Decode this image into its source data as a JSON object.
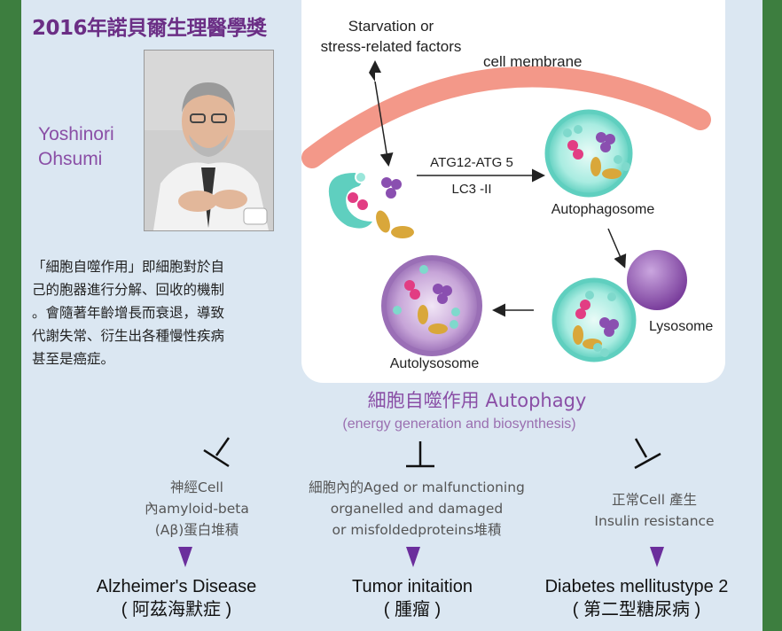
{
  "title": "2016年諾貝爾生理醫學獎",
  "laureate": {
    "first_name": "Yoshinori",
    "last_name": "Ohsumi"
  },
  "description": [
    "「細胞自噬作用」即細胞對於自",
    "己的胞器進行分解、回收的機制",
    "。會隨著年齡增長而衰退，導致",
    "代謝失常、衍生出各種慢性疾病",
    "甚至是癌症。"
  ],
  "pathway": {
    "trigger_line1": "Starvation or",
    "trigger_line2": "stress-related factors",
    "membrane": "cell membrane",
    "reaction_top": "ATG12-ATG 5",
    "reaction_bottom": "LC3 -II",
    "autophagosome": "Autophagosome",
    "lysosome": "Lysosome",
    "autolysosome": "Autolysosome"
  },
  "autophagy": {
    "title": "細胞自噬作用 Autophagy",
    "subtitle": "(energy generation and biosynthesis)"
  },
  "effects": [
    {
      "lines": [
        "神經Cell",
        "內amyloid-beta",
        "(Aβ)蛋白堆積"
      ]
    },
    {
      "lines": [
        "細胞內的Aged or malfunctioning",
        "organelled and damaged",
        "or misfoldedproteins堆積"
      ]
    },
    {
      "lines": [
        "正常Cell 產生",
        "Insulin resistance"
      ]
    }
  ],
  "diseases": [
    {
      "en": "Alzheimer's Disease",
      "zh": "( 阿茲海默症 )"
    },
    {
      "en": "Tumor initaition",
      "zh": "( 腫瘤 )"
    },
    {
      "en": "Diabetes mellitustype 2",
      "zh": "( 第二型糖尿病 )"
    }
  ],
  "colors": {
    "background": "#3d7e3f",
    "panel": "#dbe7f2",
    "purple": "#8a4fa6",
    "membrane": "#f08a78",
    "vesicle": "#7fd9cc"
  }
}
